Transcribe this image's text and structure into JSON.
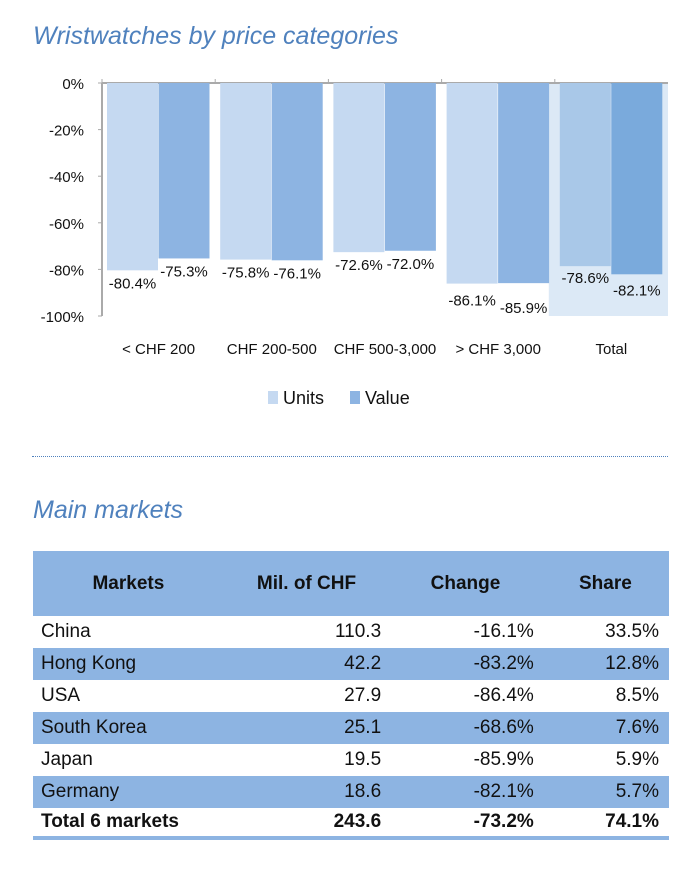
{
  "chart_data": {
    "type": "bar",
    "title": "Wristwatches by price categories",
    "categories": [
      "< CHF 200",
      "CHF 200-500",
      "CHF 500-3,000",
      "> CHF 3,000",
      "Total"
    ],
    "series": [
      {
        "name": "Units",
        "values": [
          -80.4,
          -75.8,
          -72.6,
          -86.1,
          -78.6
        ],
        "labels": [
          "-80.4%",
          "-75.8%",
          "-72.6%",
          "-86.1%",
          "-78.6%"
        ],
        "color": "#c5d9f1"
      },
      {
        "name": "Value",
        "values": [
          -75.3,
          -76.1,
          -72.0,
          -85.9,
          -82.1
        ],
        "labels": [
          "-75.3%",
          "-76.1%",
          "-72.0%",
          "-85.9%",
          "-82.1%"
        ],
        "color": "#8db4e2"
      }
    ],
    "total_colors": {
      "Units": "#a9c8e8",
      "Value": "#7aaadc",
      "background": "#dce9f6"
    },
    "yticks": [
      "0%",
      "-20%",
      "-40%",
      "-60%",
      "-80%",
      "-100%"
    ],
    "ylim": [
      -100,
      0
    ],
    "legend": "bottom",
    "grid": false
  },
  "table": {
    "title": "Main markets",
    "headers": [
      "Markets",
      "Mil. of CHF",
      "Change",
      "Share"
    ],
    "rows": [
      [
        "China",
        "110.3",
        "-16.1%",
        "33.5%"
      ],
      [
        "Hong Kong",
        "42.2",
        "-83.2%",
        "12.8%"
      ],
      [
        "USA",
        "27.9",
        "-86.4%",
        "8.5%"
      ],
      [
        "South Korea",
        "25.1",
        "-68.6%",
        "7.6%"
      ],
      [
        "Japan",
        "19.5",
        "-85.9%",
        "5.9%"
      ],
      [
        "Germany",
        "18.6",
        "-82.1%",
        "5.7%"
      ]
    ],
    "total": [
      "Total 6 markets",
      "243.6",
      "-73.2%",
      "74.1%"
    ]
  }
}
